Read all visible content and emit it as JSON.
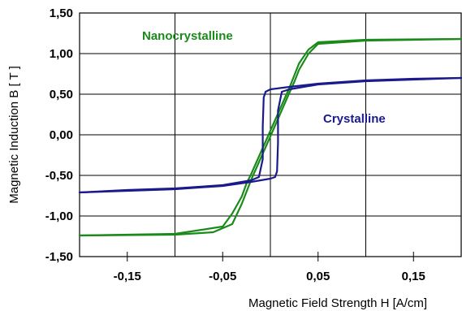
{
  "chart_data": {
    "type": "line",
    "title": "",
    "xlabel": "Magnetic Field Strength  H [A/cm]",
    "ylabel": "Magnetic Induction  B [ T ]",
    "xlim": [
      -0.2,
      0.2
    ],
    "ylim": [
      -1.5,
      1.5
    ],
    "x_ticks": [
      -0.15,
      -0.05,
      0.05,
      0.15
    ],
    "x_tick_labels": [
      "-0,15",
      "-0,05",
      "0,05",
      "0,15"
    ],
    "y_ticks": [
      1.5,
      1.0,
      0.5,
      0.0,
      -0.5,
      -1.0,
      -1.5
    ],
    "y_tick_labels": [
      "1,50",
      "1,00",
      "0,50",
      "0,00",
      "-0,50",
      "-1,00",
      "-1,50"
    ],
    "x_gridlines": [
      -0.1,
      0.0,
      0.1
    ],
    "grid": true,
    "series": [
      {
        "name": "Nanocrystalline",
        "color": "#1a8a1a",
        "branches": [
          {
            "x": [
              -0.2,
              -0.1,
              -0.06,
              -0.04,
              -0.03,
              -0.02,
              0.0,
              0.02,
              0.025,
              0.03,
              0.04,
              0.05,
              0.1,
              0.2
            ],
            "y": [
              -1.24,
              -1.23,
              -1.2,
              -1.1,
              -0.85,
              -0.55,
              -0.02,
              0.52,
              0.65,
              0.8,
              1.0,
              1.12,
              1.16,
              1.18
            ]
          },
          {
            "x": [
              0.2,
              0.1,
              0.05,
              0.04,
              0.03,
              0.02,
              0.0,
              -0.02,
              -0.025,
              -0.03,
              -0.04,
              -0.05,
              -0.1,
              -0.2
            ],
            "y": [
              1.18,
              1.17,
              1.14,
              1.05,
              0.88,
              0.58,
              0.05,
              -0.48,
              -0.6,
              -0.76,
              -0.97,
              -1.13,
              -1.22,
              -1.24
            ]
          }
        ]
      },
      {
        "name": "Crystalline",
        "color": "#1a1a8c",
        "branches": [
          {
            "x": [
              -0.2,
              -0.15,
              -0.1,
              -0.05,
              -0.02,
              0.0,
              0.005,
              0.007,
              0.008,
              0.008,
              0.012,
              0.02,
              0.05,
              0.1,
              0.15,
              0.2
            ],
            "y": [
              -0.71,
              -0.69,
              -0.67,
              -0.63,
              -0.58,
              -0.54,
              -0.52,
              -0.45,
              -0.1,
              0.3,
              0.53,
              0.56,
              0.62,
              0.66,
              0.68,
              0.7
            ]
          },
          {
            "x": [
              0.2,
              0.15,
              0.1,
              0.05,
              0.02,
              0.0,
              -0.005,
              -0.007,
              -0.008,
              -0.008,
              -0.012,
              -0.02,
              -0.05,
              -0.1,
              -0.15,
              -0.2
            ],
            "y": [
              0.7,
              0.69,
              0.67,
              0.63,
              0.59,
              0.56,
              0.53,
              0.46,
              0.1,
              -0.3,
              -0.52,
              -0.56,
              -0.62,
              -0.66,
              -0.68,
              -0.71
            ]
          }
        ]
      }
    ]
  }
}
